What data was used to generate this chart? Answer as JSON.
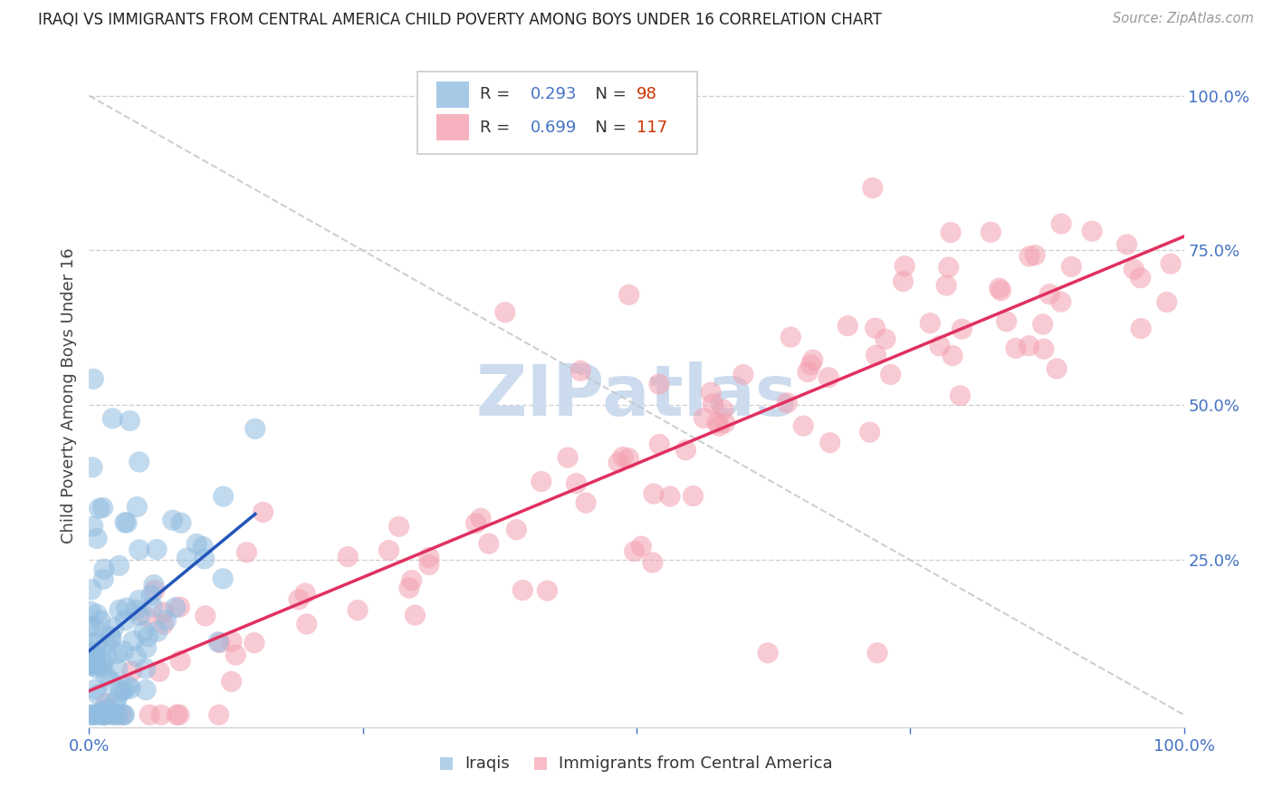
{
  "title": "IRAQI VS IMMIGRANTS FROM CENTRAL AMERICA CHILD POVERTY AMONG BOYS UNDER 16 CORRELATION CHART",
  "source": "Source: ZipAtlas.com",
  "ylabel": "Child Poverty Among Boys Under 16",
  "xlim": [
    0,
    1
  ],
  "ylim": [
    -0.02,
    1.05
  ],
  "y_tick_labels": [
    "25.0%",
    "50.0%",
    "75.0%",
    "100.0%"
  ],
  "y_tick_positions": [
    0.25,
    0.5,
    0.75,
    1.0
  ],
  "iraqis_color": "#90bce0",
  "central_america_color": "#f4a0b0",
  "iraqis_line_color": "#2255bb",
  "central_america_line_color": "#e03060",
  "watermark_color": "#ccdcee",
  "background_color": "#ffffff",
  "grid_color": "#cccccc",
  "iraqis_R": 0.293,
  "iraqis_N": 98,
  "central_america_R": 0.699,
  "central_america_N": 117,
  "diag_color": "#c0c8d0",
  "axis_label_color": "#4472c4",
  "title_color": "#222222",
  "source_color": "#999999",
  "legend_R_color": "#4472c4",
  "legend_N_color": "#cc3300"
}
